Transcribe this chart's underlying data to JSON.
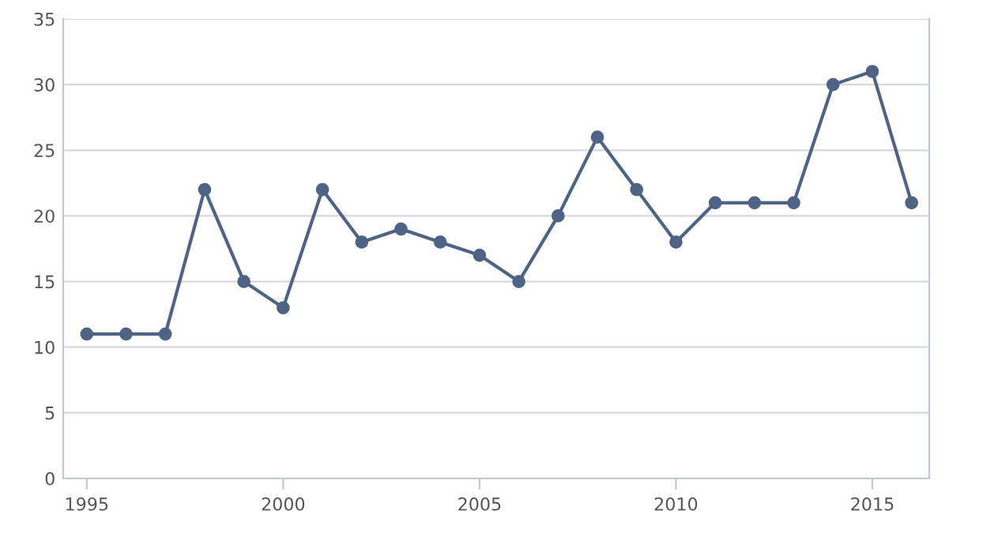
{
  "chart_data": {
    "type": "line",
    "x": [
      1995,
      1996,
      1997,
      1998,
      1999,
      2000,
      2001,
      2002,
      2003,
      2004,
      2005,
      2006,
      2007,
      2008,
      2009,
      2010,
      2011,
      2012,
      2013,
      2014,
      2015,
      2016
    ],
    "series": [
      {
        "color": "#4f6384",
        "values": [
          11,
          11,
          11,
          22,
          15,
          13,
          22,
          18,
          19,
          18,
          17,
          15,
          20,
          26,
          22,
          18,
          21,
          21,
          21,
          30,
          31,
          21
        ]
      }
    ],
    "xlim": [
      1994.4,
      2016.45
    ],
    "xticks": [
      1995,
      2000,
      2005,
      2010,
      2015
    ],
    "ylim": [
      0,
      35
    ],
    "yticks": [
      0,
      5,
      10,
      15,
      20,
      25,
      30,
      35
    ],
    "grid": "y",
    "marker": "circle",
    "line_style": "solid"
  }
}
